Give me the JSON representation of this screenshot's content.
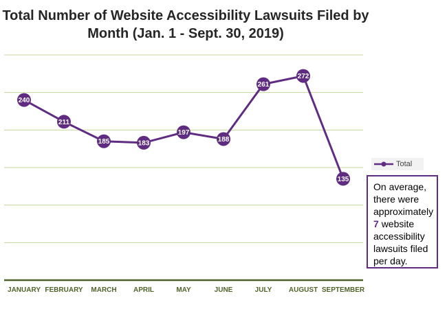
{
  "chart_data": {
    "type": "line",
    "title": "Total Number of Website Accessibility Lawsuits Filed by Month (Jan. 1 - Sept. 30, 2019)",
    "categories": [
      "JANUARY",
      "FEBRUARY",
      "MARCH",
      "APRIL",
      "MAY",
      "JUNE",
      "JULY",
      "AUGUST",
      "SEPTEMBER"
    ],
    "series": [
      {
        "name": "Total",
        "values": [
          240,
          211,
          185,
          183,
          197,
          188,
          261,
          272,
          135
        ]
      }
    ],
    "ylim": [
      0,
      300
    ],
    "grid": true,
    "legend": "right",
    "colors": {
      "line": "#5f2c82",
      "grid": "#c3d69b",
      "axis": "#4f6228",
      "tick_label": "#4f6228"
    }
  },
  "annotation": {
    "line1": "On average, there were approximately",
    "bold": "7",
    "line2": "website accessibility lawsuits filed per day."
  }
}
